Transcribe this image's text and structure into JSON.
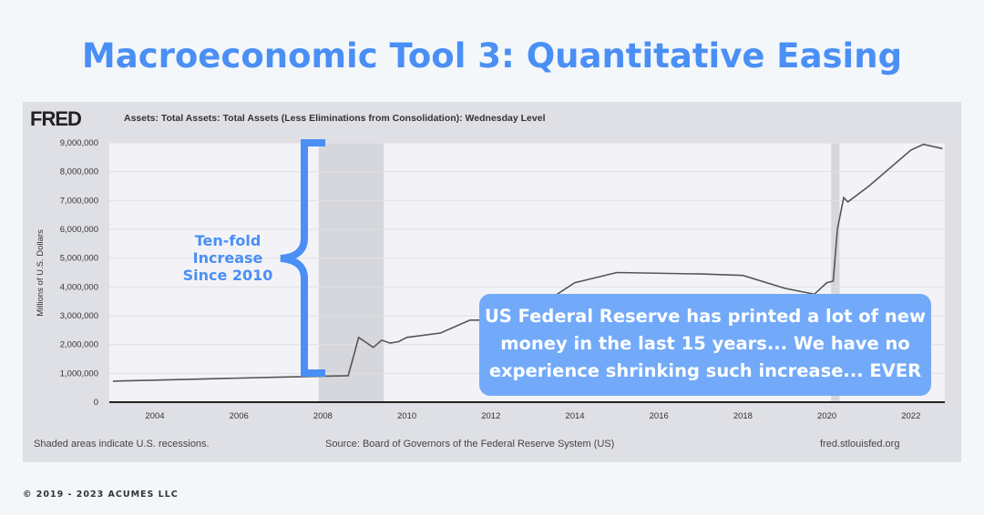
{
  "title": "Macroeconomic Tool 3: Quantitative Easing",
  "copyright": "© 2019 - 2023 ACUMES LLC",
  "fred_logo": "FRED",
  "annotation_bracket": "Ten-fold Increase Since 2010",
  "callout": "US Federal Reserve has printed a lot of new money in the last 15 years... We have no experience shrinking such increase... EVER",
  "footer": {
    "left": "Shaded areas indicate U.S. recessions.",
    "center": "Source: Board of Governors of the Federal Reserve System (US)",
    "right": "fred.stlouisfed.org"
  },
  "colors": {
    "accent": "#4a8ff5",
    "line": "#555555",
    "recession": "#d6d7dc"
  },
  "chart_data": {
    "type": "line",
    "legend": "Assets: Total Assets: Total Assets (Less Eliminations from Consolidation): Wednesday Level",
    "ylabel": "Millions of U.S. Dollars",
    "ylim": [
      0,
      9000000
    ],
    "xlim": [
      2003,
      2022.8
    ],
    "yticks": [
      "0",
      "1,000,000",
      "2,000,000",
      "3,000,000",
      "4,000,000",
      "5,000,000",
      "6,000,000",
      "7,000,000",
      "8,000,000",
      "9,000,000"
    ],
    "xticks": [
      "2004",
      "2006",
      "2008",
      "2010",
      "2012",
      "2014",
      "2016",
      "2018",
      "2020",
      "2022"
    ],
    "grid": true,
    "recessions": [
      [
        2007.9,
        2009.45
      ],
      [
        2020.1,
        2020.3
      ]
    ],
    "x": [
      2003,
      2005,
      2007,
      2008.6,
      2008.75,
      2008.85,
      2009.0,
      2009.2,
      2009.4,
      2009.6,
      2009.8,
      2010,
      2010.8,
      2011.5,
      2012.5,
      2013,
      2014,
      2015,
      2017,
      2018,
      2019,
      2019.7,
      2020.0,
      2020.15,
      2020.25,
      2020.4,
      2020.5,
      2021,
      2022,
      2022.3,
      2022.75
    ],
    "values": [
      730000,
      800000,
      870000,
      920000,
      1700000,
      2250000,
      2100000,
      1900000,
      2150000,
      2050000,
      2100000,
      2250000,
      2400000,
      2850000,
      2850000,
      3200000,
      4150000,
      4500000,
      4450000,
      4400000,
      3950000,
      3750000,
      4150000,
      4200000,
      6000000,
      7100000,
      6950000,
      7500000,
      8750000,
      8950000,
      8800000
    ]
  }
}
